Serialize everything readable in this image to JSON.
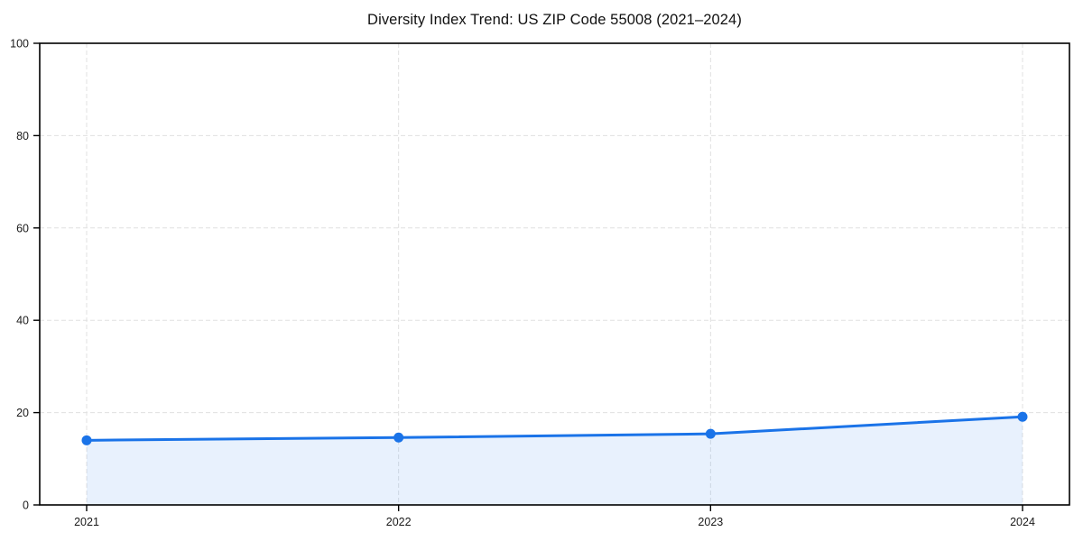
{
  "chart_data": {
    "type": "line",
    "title": "Diversity Index Trend: US ZIP Code 55008 (2021–2024)",
    "categories": [
      "2021",
      "2022",
      "2023",
      "2024"
    ],
    "series": [
      {
        "name": "Diversity Index",
        "values": [
          14.0,
          14.6,
          15.4,
          19.1
        ]
      }
    ],
    "xlabel": "",
    "ylabel": "",
    "ylim": [
      0,
      100
    ],
    "yticks": [
      0,
      20,
      40,
      60,
      80,
      100
    ],
    "grid": "dashed-both-axes",
    "legend_position": "none",
    "area_under_line": true,
    "colors": {
      "line": "#1a73e8",
      "marker": "#1a73e8",
      "area_fill": "#1a73e8",
      "area_opacity": 0.1,
      "grid": "#e0e0e0",
      "axis": "#000000",
      "tick_label": "#1a1a1a",
      "background": "#ffffff"
    }
  }
}
